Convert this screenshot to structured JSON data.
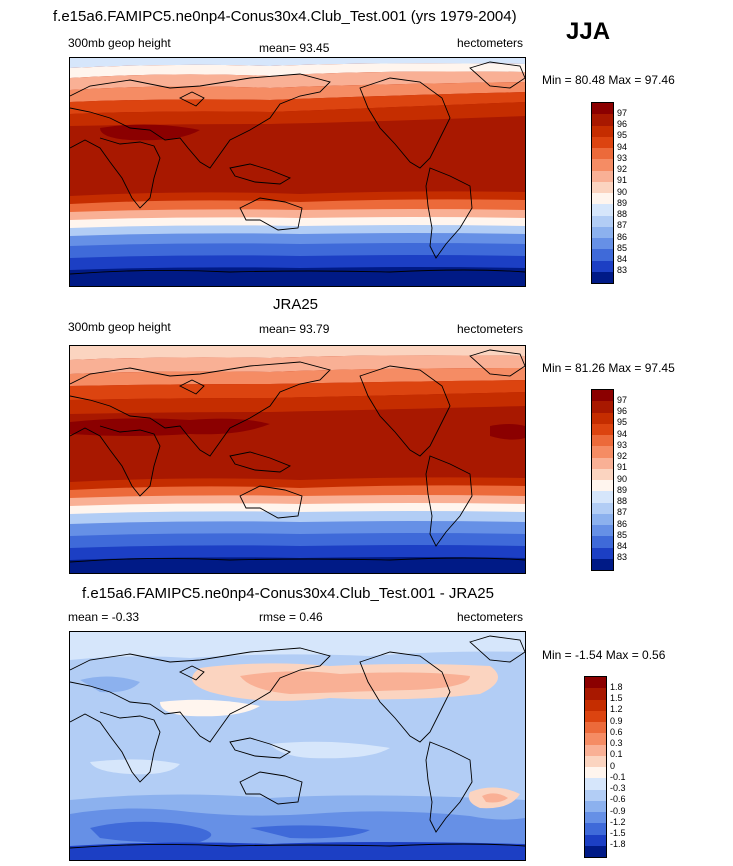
{
  "header": {
    "main_title": "f.e15a6.FAMIPC5.ne0np4-Conus30x4.Club_Test.001 (yrs 1979-2004)",
    "season": "JJA"
  },
  "panels": [
    {
      "title": "",
      "left_label": "300mb geop height",
      "center_label": "mean=  93.45",
      "right_label": "hectometers",
      "minmax": "Min =  80.48 Max =  97.46",
      "levels": [
        "97",
        "96",
        "95",
        "94",
        "93",
        "92",
        "91",
        "90",
        "89",
        "88",
        "87",
        "86",
        "85",
        "84",
        "83"
      ],
      "colors": [
        "#8b0000",
        "#a81800",
        "#c52d00",
        "#dc4410",
        "#ec6a3a",
        "#f58c64",
        "#f9b095",
        "#fbd4c0",
        "#fff5ee",
        "#d6e6fb",
        "#b2cdf5",
        "#8cb1ee",
        "#6690e6",
        "#3f6ad9",
        "#1c3fc4",
        "#001a86"
      ]
    },
    {
      "title": "JRA25",
      "left_label": "300mb geop height",
      "center_label": "mean=  93.79",
      "right_label": "hectometers",
      "minmax": "Min =  81.26 Max =  97.45",
      "levels": [
        "97",
        "96",
        "95",
        "94",
        "93",
        "92",
        "91",
        "90",
        "89",
        "88",
        "87",
        "86",
        "85",
        "84",
        "83"
      ],
      "colors": [
        "#8b0000",
        "#a81800",
        "#c52d00",
        "#dc4410",
        "#ec6a3a",
        "#f58c64",
        "#f9b095",
        "#fbd4c0",
        "#fff5ee",
        "#d6e6fb",
        "#b2cdf5",
        "#8cb1ee",
        "#6690e6",
        "#3f6ad9",
        "#1c3fc4",
        "#001a86"
      ]
    },
    {
      "title": "f.e15a6.FAMIPC5.ne0np4-Conus30x4.Club_Test.001 - JRA25",
      "left_label": "mean =  -0.33",
      "center_label": "rmse =   0.46",
      "right_label": "hectometers",
      "minmax": "Min =  -1.54 Max =   0.56",
      "levels": [
        "1.8",
        "1.5",
        "1.2",
        "0.9",
        "0.6",
        "0.3",
        "0.1",
        "0",
        "-0.1",
        "-0.3",
        "-0.6",
        "-0.9",
        "-1.2",
        "-1.5",
        "-1.8"
      ],
      "colors": [
        "#8b0000",
        "#a81800",
        "#c52d00",
        "#dc4410",
        "#ec6a3a",
        "#f58c64",
        "#f9b095",
        "#fbd4c0",
        "#fff5ee",
        "#d6e6fb",
        "#b2cdf5",
        "#8cb1ee",
        "#6690e6",
        "#3f6ad9",
        "#1c3fc4",
        "#001a86"
      ]
    }
  ]
}
